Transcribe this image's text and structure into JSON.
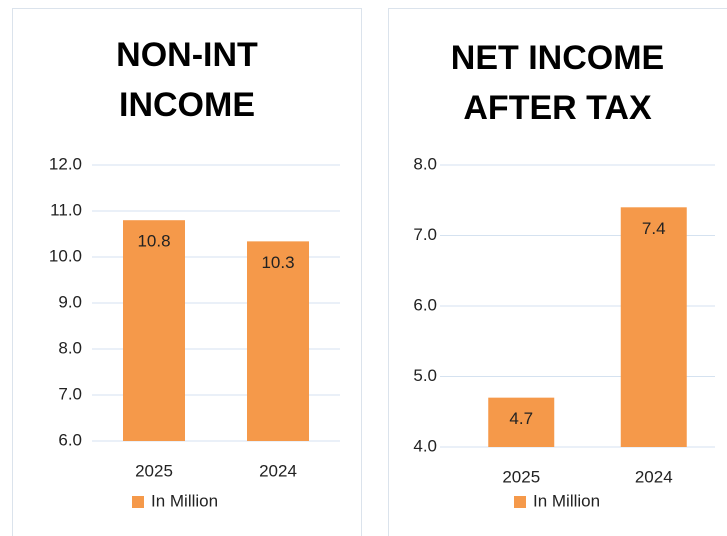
{
  "chart_data": [
    {
      "type": "bar",
      "title": "NON-INT INCOME",
      "categories": [
        "2025",
        "2024"
      ],
      "series": [
        {
          "name": "In Million",
          "color": "#f5994a",
          "values": [
            10.8,
            10.34
          ],
          "value_labels": [
            "10.8",
            "10.3"
          ]
        }
      ],
      "ylim": [
        6,
        12
      ],
      "yticks": [
        {
          "value": 6,
          "label": "6.0"
        },
        {
          "value": 7,
          "label": "7.0"
        },
        {
          "value": 8,
          "label": "8.0"
        },
        {
          "value": 9,
          "label": "9.0"
        },
        {
          "value": 10,
          "label": "10.0"
        },
        {
          "value": 11,
          "label": "11.0"
        },
        {
          "value": 12,
          "label": "12.0"
        }
      ],
      "grid": true,
      "legend": "bottom"
    },
    {
      "type": "bar",
      "title": "NET INCOME AFTER TAX",
      "categories": [
        "2025",
        "2024"
      ],
      "series": [
        {
          "name": "In Million",
          "color": "#f5994a",
          "values": [
            4.7,
            7.4
          ],
          "value_labels": [
            "4.7",
            "7.4"
          ]
        }
      ],
      "ylim": [
        4,
        8
      ],
      "yticks": [
        {
          "value": 4,
          "label": "4.0"
        },
        {
          "value": 5,
          "label": "5.0"
        },
        {
          "value": 6,
          "label": "6.0"
        },
        {
          "value": 7,
          "label": "7.0"
        },
        {
          "value": 8,
          "label": "8.0"
        }
      ],
      "grid": true,
      "legend": "bottom"
    }
  ]
}
